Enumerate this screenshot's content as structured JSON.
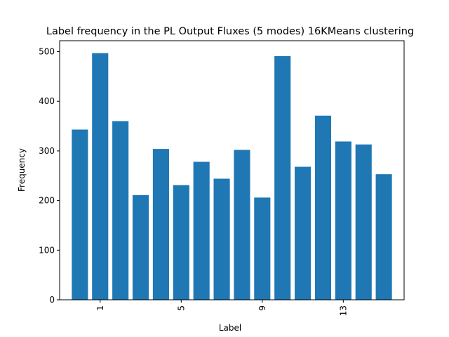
{
  "chart_data": {
    "type": "bar",
    "title": "Label frequency in the PL Output Fluxes (5 modes) 16KMeans clustering",
    "xlabel": "Label",
    "ylabel": "Frequency",
    "categories": [
      0,
      1,
      2,
      3,
      4,
      5,
      6,
      7,
      8,
      9,
      10,
      11,
      12,
      13,
      14,
      15
    ],
    "values": [
      343,
      497,
      360,
      211,
      304,
      231,
      278,
      244,
      302,
      206,
      491,
      268,
      371,
      319,
      313,
      253
    ],
    "xticks": [
      1,
      5,
      9,
      13
    ],
    "xtick_labels": [
      "1",
      "5",
      "9",
      "13"
    ],
    "yticks": [
      0,
      100,
      200,
      300,
      400,
      500
    ],
    "ytick_labels": [
      "0",
      "100",
      "200",
      "300",
      "400",
      "500"
    ],
    "xlim": [
      -1.0,
      16.0
    ],
    "ylim": [
      0,
      522
    ],
    "bar_color": "#1f77b4",
    "grid": false
  }
}
